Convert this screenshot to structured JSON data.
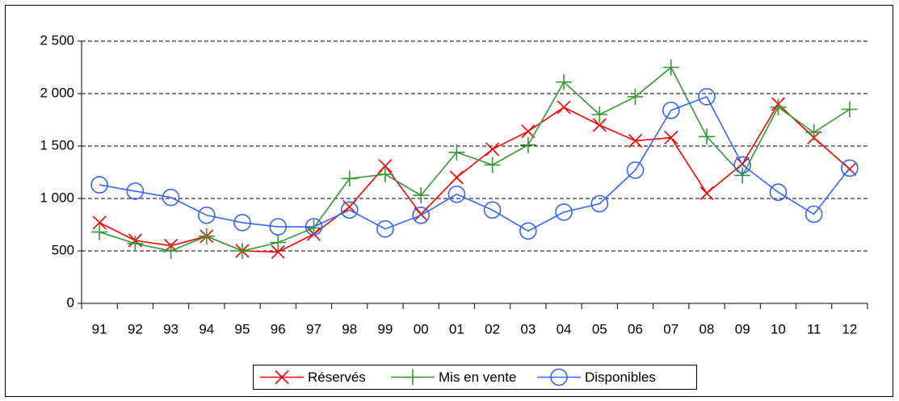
{
  "chart_data": {
    "type": "line",
    "categories": [
      "91",
      "92",
      "93",
      "94",
      "95",
      "96",
      "97",
      "98",
      "99",
      "00",
      "01",
      "02",
      "03",
      "04",
      "05",
      "06",
      "07",
      "08",
      "09",
      "10",
      "11",
      "12"
    ],
    "series": [
      {
        "name": "Réservés",
        "color": "#ff0000",
        "marker": "x",
        "values": [
          770,
          600,
          550,
          640,
          500,
          490,
          660,
          920,
          1310,
          850,
          1200,
          1470,
          1640,
          1870,
          1700,
          1550,
          1580,
          1050,
          1330,
          1900,
          1580,
          1280
        ]
      },
      {
        "name": "Mis en vente",
        "color": "#339933",
        "marker": "+",
        "values": [
          680,
          570,
          500,
          640,
          500,
          580,
          720,
          1190,
          1230,
          1030,
          1440,
          1320,
          1510,
          2110,
          1800,
          1970,
          2250,
          1590,
          1220,
          1870,
          1630,
          1850
        ]
      },
      {
        "name": "Disponibles",
        "color": "#3366ff",
        "marker": "o",
        "values": [
          1130,
          1070,
          1010,
          840,
          770,
          730,
          730,
          890,
          710,
          840,
          1040,
          890,
          690,
          870,
          950,
          1270,
          1840,
          1970,
          1320,
          1060,
          850,
          1290
        ]
      }
    ],
    "ylim": [
      0,
      2500
    ],
    "yticks": [
      0,
      500,
      {
        "value": 1000,
        "label": "1 000"
      },
      {
        "value": 1500,
        "label": "1 500"
      },
      {
        "value": 2000,
        "label": "2 000"
      },
      {
        "value": 2500,
        "label": "2 500"
      }
    ],
    "grid": true,
    "legend": "bottom"
  }
}
